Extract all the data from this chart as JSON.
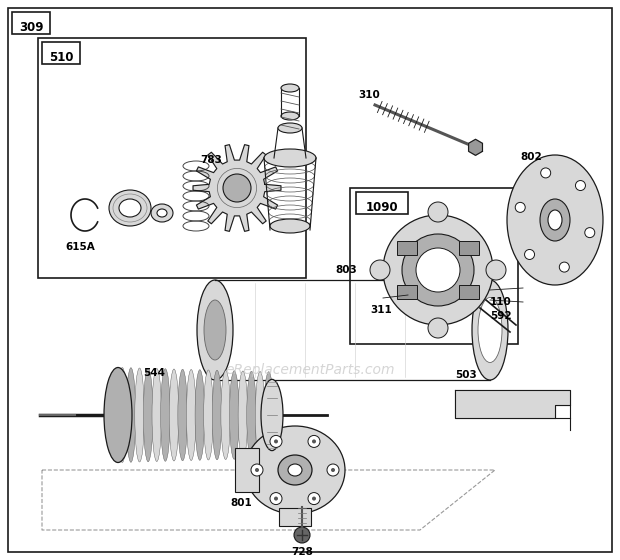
{
  "bg": "#f5f5f0",
  "lc": "#1a1a1a",
  "gray_light": "#d8d8d8",
  "gray_mid": "#b0b0b0",
  "gray_dark": "#888888",
  "white": "#ffffff",
  "watermark": "eReplacementParts.com",
  "wm_color": "#cccccc"
}
